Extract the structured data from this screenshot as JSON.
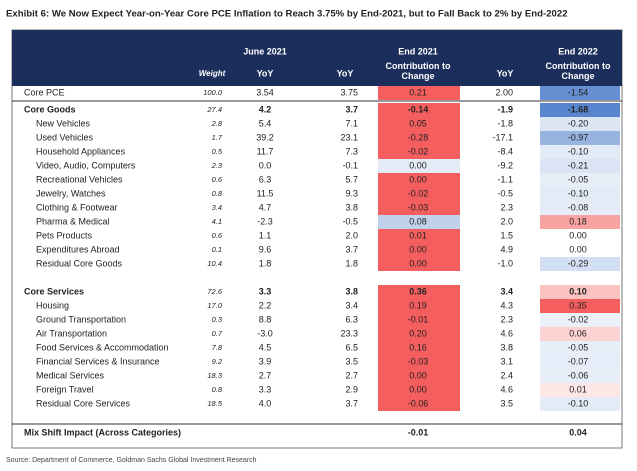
{
  "title": "Exhibit 6: We Now Expect Year-on-Year Core PCE Inflation to Reach 3.75% by End-2021, but to Fall Back to 2% by End-2022",
  "header": {
    "groups": [
      "June 2021",
      "End 2021",
      "End 2022"
    ],
    "columns": [
      "Weight",
      "YoY",
      "YoY",
      "Contribution to Change",
      "YoY",
      "Contribution to Change"
    ]
  },
  "core_pce": [
    "Core PCE",
    "100.0",
    "3.54",
    "3.75",
    "0.21",
    "2.00",
    "-1.54"
  ],
  "sections": [
    {
      "header": [
        "Core Goods",
        "27.4",
        "4.2",
        "3.7",
        "-0.14",
        "-1.9",
        "-1.68"
      ],
      "items": [
        [
          "New Vehicles",
          "2.8",
          "5.4",
          "7.1",
          "0.05",
          "-1.8",
          "-0.20"
        ],
        [
          "Used Vehicles",
          "1.7",
          "39.2",
          "23.1",
          "-0.28",
          "-17.1",
          "-0.97"
        ],
        [
          "Household Appliances",
          "0.5",
          "11.7",
          "7.3",
          "-0.02",
          "-8.4",
          "-0.10"
        ],
        [
          "Video, Audio, Computers",
          "2.3",
          "0.0",
          "-0.1",
          "0.00",
          "-9.2",
          "-0.21"
        ],
        [
          "Recreational Vehicles",
          "0.6",
          "6.3",
          "5.7",
          "0.00",
          "-1.1",
          "-0.05"
        ],
        [
          "Jewelry, Watches",
          "0.8",
          "11.5",
          "9.3",
          "-0.02",
          "-0.5",
          "-0.10"
        ],
        [
          "Clothing & Footwear",
          "3.4",
          "4.7",
          "3.8",
          "-0.03",
          "2.3",
          "-0.08"
        ],
        [
          "Pharma & Medical",
          "4.1",
          "-2.3",
          "-0.5",
          "0.08",
          "2.0",
          "0.18"
        ],
        [
          "Pets Products",
          "0.6",
          "1.1",
          "2.0",
          "0.01",
          "1.5",
          "0.00"
        ],
        [
          "Expenditures Abroad",
          "0.1",
          "9.6",
          "3.7",
          "0.00",
          "4.9",
          "0.00"
        ],
        [
          "Residual Core Goods",
          "10.4",
          "1.8",
          "1.8",
          "0.00",
          "-1.0",
          "-0.29"
        ]
      ]
    },
    {
      "header": [
        "Core Services",
        "72.6",
        "3.3",
        "3.8",
        "0.36",
        "3.4",
        "0.10"
      ],
      "items": [
        [
          "Housing",
          "17.0",
          "2.2",
          "3.4",
          "0.19",
          "4.3",
          "0.35"
        ],
        [
          "Ground Transportation",
          "0.3",
          "8.8",
          "6.3",
          "-0.01",
          "2.3",
          "-0.02"
        ],
        [
          "Air Transportation",
          "0.7",
          "-3.0",
          "23.3",
          "0.20",
          "4.6",
          "0.06"
        ],
        [
          "Food Services & Accommodation",
          "7.8",
          "4.5",
          "6.5",
          "0.16",
          "3.8",
          "-0.05"
        ],
        [
          "Financial Services & Insurance",
          "9.2",
          "3.9",
          "3.5",
          "-0.03",
          "3.1",
          "-0.07"
        ],
        [
          "Medical Services",
          "18.3",
          "2.7",
          "2.7",
          "0.00",
          "2.4",
          "-0.06"
        ],
        [
          "Foreign Travel",
          "0.8",
          "3.3",
          "2.9",
          "0.00",
          "4.6",
          "0.01"
        ],
        [
          "Residual Core Services",
          "18.5",
          "4.0",
          "3.7",
          "-0.06",
          "3.5",
          "-0.10"
        ]
      ]
    }
  ],
  "mix_shift": {
    "label": "Mix Shift Impact (Across Categories)",
    "end2021_contribution": "-0.01",
    "end2022_contribution": "0.04"
  },
  "source": "Source: Department of Commerce, Goldman Sachs Global Investment Research"
}
